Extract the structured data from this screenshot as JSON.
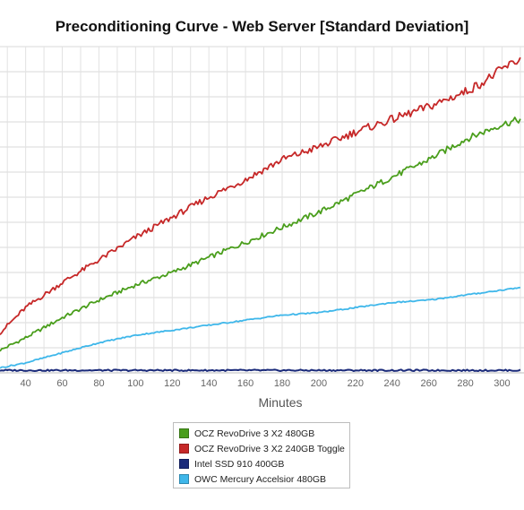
{
  "chart_data": {
    "type": "line",
    "title": "Preconditioning Curve - Web Server [Standard Deviation]",
    "xlabel": "Minutes",
    "ylabel": "",
    "xlim": [
      26,
      312
    ],
    "ylim": [
      0,
      13
    ],
    "x_ticks": [
      40,
      60,
      80,
      100,
      120,
      140,
      160,
      180,
      200,
      220,
      240,
      260,
      280,
      300
    ],
    "grid": true,
    "legend": "bottom-center",
    "series": [
      {
        "name": "OCZ RevoDrive 3 X2 480GB",
        "color": "#4a9e1c",
        "x": [
          26,
          40,
          60,
          80,
          100,
          120,
          140,
          160,
          180,
          200,
          220,
          240,
          260,
          280,
          300,
          310
        ],
        "values": [
          0.9,
          1.4,
          2.2,
          2.9,
          3.5,
          4.0,
          4.6,
          5.2,
          5.8,
          6.4,
          7.1,
          7.8,
          8.5,
          9.3,
          9.9,
          10.1
        ]
      },
      {
        "name": "OCZ RevoDrive 3 X2 240GB Toggle",
        "color": "#c62828",
        "x": [
          26,
          40,
          60,
          80,
          100,
          120,
          140,
          160,
          180,
          200,
          220,
          240,
          260,
          280,
          290,
          300,
          310
        ],
        "values": [
          1.6,
          2.6,
          3.6,
          4.5,
          5.4,
          6.2,
          7.0,
          7.7,
          8.5,
          9.0,
          9.6,
          10.1,
          10.6,
          11.2,
          11.6,
          12.1,
          12.5
        ]
      },
      {
        "name": "Intel SSD 910 400GB",
        "color": "#1a2a7a",
        "x": [
          26,
          60,
          100,
          140,
          180,
          220,
          260,
          300,
          310
        ],
        "values": [
          0.1,
          0.1,
          0.1,
          0.1,
          0.1,
          0.1,
          0.1,
          0.1,
          0.1
        ]
      },
      {
        "name": "OWC Mercury Accelsior 480GB",
        "color": "#3fb7ea",
        "x": [
          26,
          40,
          60,
          80,
          100,
          120,
          140,
          160,
          180,
          200,
          220,
          240,
          260,
          280,
          300,
          310
        ],
        "values": [
          0.2,
          0.4,
          0.8,
          1.2,
          1.5,
          1.7,
          1.9,
          2.1,
          2.3,
          2.4,
          2.6,
          2.8,
          2.9,
          3.1,
          3.3,
          3.4
        ]
      }
    ]
  }
}
